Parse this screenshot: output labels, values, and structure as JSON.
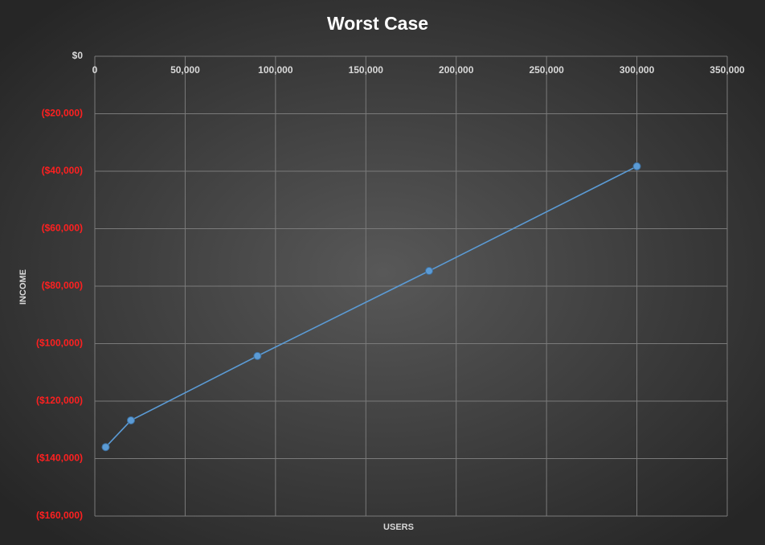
{
  "chart_data": {
    "type": "line",
    "title": "Worst Case",
    "x_label": "USERS",
    "y_label": "INCOME",
    "x": [
      6000,
      20000,
      90000,
      185000,
      300000
    ],
    "values": [
      -136000,
      -126700,
      -104300,
      -74700,
      -38300
    ],
    "color": "#5b9bd5",
    "xlim": [
      0,
      350000
    ],
    "xticks": [
      0,
      {
        "value": 50000,
        "label": "50,000"
      },
      {
        "value": 100000,
        "label": "100,000"
      },
      {
        "value": 150000,
        "label": "150,000"
      },
      {
        "value": 200000,
        "label": "200,000"
      },
      {
        "value": 250000,
        "label": "250,000"
      },
      {
        "value": 300000,
        "label": "300,000"
      },
      {
        "value": 350000,
        "label": "350,000"
      }
    ],
    "ylim": [
      -160000,
      0
    ],
    "yticks": [
      {
        "value": 0,
        "label": "$0"
      },
      {
        "value": -20000,
        "label": "($20,000)"
      },
      {
        "value": -40000,
        "label": "($40,000)"
      },
      {
        "value": -60000,
        "label": "($60,000)"
      },
      {
        "value": -80000,
        "label": "($80,000)"
      },
      {
        "value": -100000,
        "label": "($100,000)"
      },
      {
        "value": -120000,
        "label": "($120,000)"
      },
      {
        "value": -140000,
        "label": "($140,000)"
      },
      {
        "value": -160000,
        "label": "($160,000)"
      }
    ],
    "negative_tick_color": "#ff2020",
    "grid": true
  }
}
